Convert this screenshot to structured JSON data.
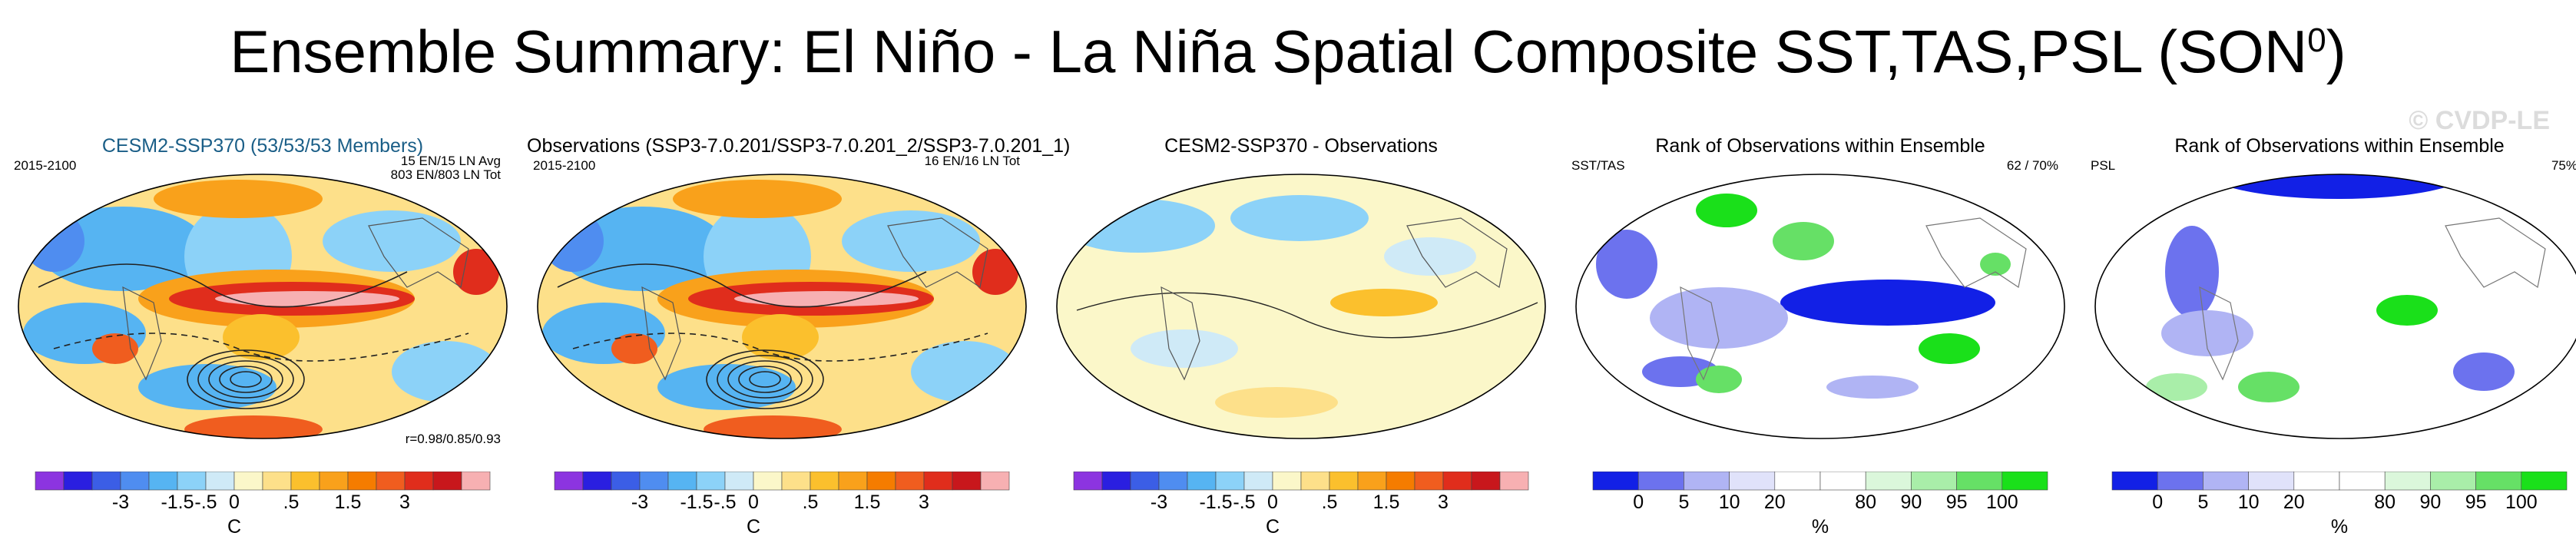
{
  "title": "Ensemble Summary: El Niño - La Niña Spatial Composite SST,TAS,PSL (SON",
  "title_sup": "0",
  "title_end": ")",
  "watermark": "© CVDP-LE",
  "colors": {
    "temp_scale": [
      "#8c34e0",
      "#2a1fe0",
      "#3b5ee6",
      "#4f8df0",
      "#56b4f2",
      "#8cd2f8",
      "#cfeaf7",
      "#fbf7c9",
      "#fde08a",
      "#fbc02d",
      "#f9a11b",
      "#f57c00",
      "#f05d1f",
      "#e02d1c",
      "#c8171c",
      "#f7b0b2"
    ],
    "rank_scale": [
      "#1220e6",
      "#6c72ee",
      "#b0b4f4",
      "#e0e2fa",
      "#ffffff",
      "#ffffff",
      "#dbf7db",
      "#a9eea9",
      "#66e066",
      "#1ae01a"
    ]
  },
  "panels": [
    {
      "title": "CESM2-SSP370 (53/53/53 Members)",
      "years": "2015-2100",
      "note1": "15 EN/15 LN Avg",
      "note2": "803 EN/803 LN Tot",
      "corr": "r=0.98/0.85/0.93",
      "scale": "temp",
      "unit": "C"
    },
    {
      "title": "Observations (SSP3-7.0.201/SSP3-7.0.201_2/SSP3-7.0.201_1)",
      "years": "2015-2100",
      "note1": "16 EN/16 LN Tot",
      "scale": "temp",
      "unit": "C"
    },
    {
      "title": "CESM2-SSP370 - Observations",
      "scale": "temp",
      "unit": "C"
    },
    {
      "title": "Rank of Observations within Ensemble",
      "left": "SST/TAS",
      "right": "62 /  70%",
      "scale": "rank",
      "unit": "%"
    },
    {
      "title": "Rank of Observations within Ensemble",
      "left": "PSL",
      "right": "75%",
      "scale": "rank",
      "unit": "%"
    }
  ],
  "temp_ticks": [
    "-3",
    "-1.5",
    "-.5",
    "0",
    ".5",
    "1.5",
    "3"
  ],
  "rank_ticks": [
    "0",
    "5",
    "10",
    "20",
    "80",
    "90",
    "95",
    "100"
  ]
}
